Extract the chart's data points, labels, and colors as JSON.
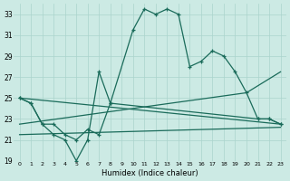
{
  "bg_color": "#cceae4",
  "grid_color": "#aad4cc",
  "line_color": "#1a6b5a",
  "xlabel": "Humidex (Indice chaleur)",
  "ylim": [
    19,
    34
  ],
  "xlim": [
    -0.5,
    23.5
  ],
  "yticks": [
    19,
    21,
    23,
    25,
    27,
    29,
    31,
    33
  ],
  "xticks": [
    0,
    1,
    2,
    3,
    4,
    5,
    6,
    7,
    8,
    9,
    10,
    11,
    12,
    13,
    14,
    15,
    16,
    17,
    18,
    19,
    20,
    21,
    22,
    23
  ],
  "line1_x": [
    0,
    1,
    2,
    3,
    4,
    5,
    6,
    7,
    8,
    10,
    11,
    12,
    13,
    14,
    15,
    16,
    17,
    18,
    19,
    20,
    21,
    22,
    23
  ],
  "line1_y": [
    25.0,
    24.5,
    22.5,
    21.5,
    21.0,
    19.0,
    21.0,
    27.5,
    24.5,
    31.5,
    33.5,
    33.0,
    33.5,
    33.0,
    28.0,
    28.5,
    29.5,
    29.0,
    27.5,
    25.5,
    23.0,
    23.0,
    22.5
  ],
  "line2_x": [
    0,
    1,
    2,
    3,
    4,
    5,
    6,
    7,
    8,
    21,
    22,
    23
  ],
  "line2_y": [
    25.0,
    24.5,
    22.5,
    22.5,
    21.5,
    21.0,
    22.0,
    21.5,
    24.5,
    23.0,
    23.0,
    22.5
  ],
  "line3_x": [
    0,
    23
  ],
  "line3_y": [
    25.0,
    22.5
  ],
  "line4_x": [
    0,
    23
  ],
  "line4_y": [
    21.5,
    22.2
  ],
  "line5_x": [
    0,
    20,
    23
  ],
  "line5_y": [
    22.5,
    25.5,
    27.5
  ]
}
